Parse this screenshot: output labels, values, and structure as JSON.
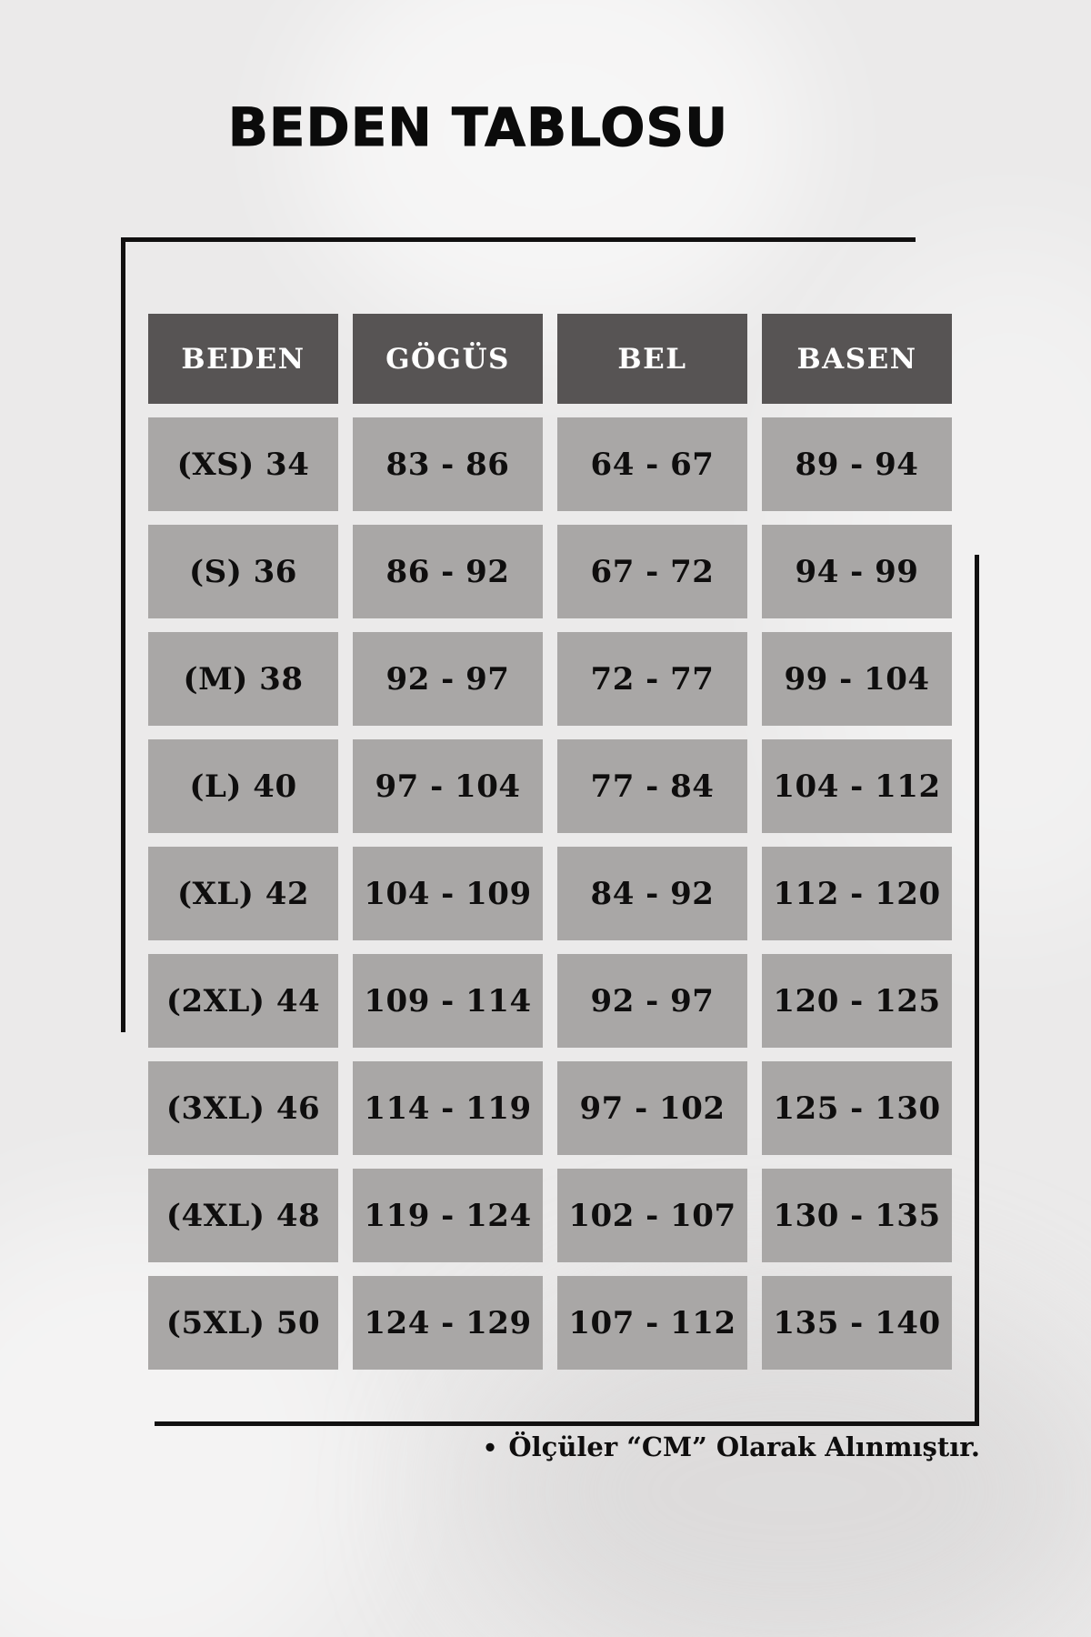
{
  "title": "BEDEN TABLOSU",
  "table": {
    "headers": [
      "BEDEN",
      "GÖGÜS",
      "BEL",
      "BASEN"
    ],
    "rows": [
      [
        "(XS) 34",
        "83 - 86",
        "64 - 67",
        "89 - 94"
      ],
      [
        "(S) 36",
        "86 - 92",
        "67 - 72",
        "94 - 99"
      ],
      [
        "(M) 38",
        "92 - 97",
        "72 - 77",
        "99 - 104"
      ],
      [
        "(L) 40",
        "97 - 104",
        "77 - 84",
        "104 - 112"
      ],
      [
        "(XL) 42",
        "104 - 109",
        "84 - 92",
        "112 - 120"
      ],
      [
        "(2XL) 44",
        "109 - 114",
        "92 - 97",
        "120 - 125"
      ],
      [
        "(3XL) 46",
        "114 - 119",
        "97 - 102",
        "125 - 130"
      ],
      [
        "(4XL) 48",
        "119 - 124",
        "102 - 107",
        "130 - 135"
      ],
      [
        "(5XL) 50",
        "124 - 129",
        "107 - 112",
        "135 - 140"
      ]
    ]
  },
  "footer": {
    "bullet": "•",
    "note": "Ölçüler “CM” Olarak Alınmıştır."
  },
  "colors": {
    "page_bg": "#ebeaea",
    "header_bg": "#575454",
    "cell_bg": "#a9a7a6",
    "header_text": "#ffffff",
    "cell_text": "#0f0e0e",
    "line": "#111010",
    "title_color": "#0b0b0b"
  },
  "chart_data": {
    "type": "table",
    "title": "BEDEN TABLOSU",
    "columns": [
      "BEDEN",
      "GÖGÜS",
      "BEL",
      "BASEN"
    ],
    "rows": [
      [
        "(XS) 34",
        "83 - 86",
        "64 - 67",
        "89 - 94"
      ],
      [
        "(S) 36",
        "86 - 92",
        "67 - 72",
        "94 - 99"
      ],
      [
        "(M) 38",
        "92 - 97",
        "72 - 77",
        "99 - 104"
      ],
      [
        "(L) 40",
        "97 - 104",
        "77 - 84",
        "104 - 112"
      ],
      [
        "(XL) 42",
        "104 - 109",
        "84 - 92",
        "112 - 120"
      ],
      [
        "(2XL) 44",
        "109 - 114",
        "92 - 97",
        "120 - 125"
      ],
      [
        "(3XL) 46",
        "114 - 119",
        "97 - 102",
        "125 - 130"
      ],
      [
        "(4XL) 48",
        "119 - 124",
        "102 - 107",
        "130 - 135"
      ],
      [
        "(5XL) 50",
        "124 - 129",
        "107 - 112",
        "135 - 140"
      ]
    ],
    "note": "Ölçüler “CM” Olarak Alınmıştır.",
    "units": "CM",
    "layout": "header row dark gray, body cells light gray, centered bold serif text"
  }
}
